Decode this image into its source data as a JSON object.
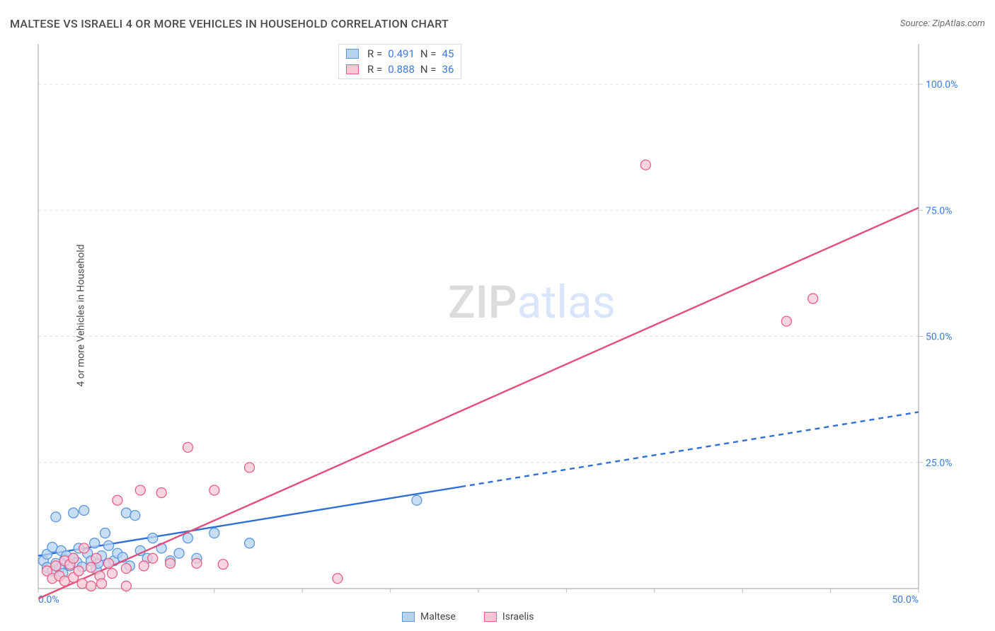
{
  "header": {
    "title": "MALTESE VS ISRAELI 4 OR MORE VEHICLES IN HOUSEHOLD CORRELATION CHART",
    "source": "Source: ZipAtlas.com"
  },
  "y_axis_label": "4 or more Vehicles in Household",
  "watermark": {
    "part1": "ZIP",
    "part2": "atlas"
  },
  "chart": {
    "type": "scatter-with-regression",
    "xlim": [
      0,
      50
    ],
    "ylim": [
      0,
      108
    ],
    "x_ticks": [
      0,
      5,
      10,
      15,
      20,
      25,
      30,
      35,
      40,
      45,
      50
    ],
    "x_tick_labels": [
      "0.0%",
      "",
      "",
      "",
      "",
      "",
      "",
      "",
      "",
      "",
      "50.0%"
    ],
    "y_ticks": [
      25,
      50,
      75,
      100
    ],
    "y_tick_labels": [
      "25.0%",
      "50.0%",
      "75.0%",
      "100.0%"
    ],
    "x_label_color": "#3a7be0",
    "y_label_color": "#3a7be0",
    "grid_color": "#dedede",
    "grid_dash": "4,4",
    "axis_color": "#bdbdbd",
    "tick_color": "#bdbdbd",
    "background_color": "#ffffff",
    "series": [
      {
        "name": "Maltese",
        "marker_fill": "#b6d3f2",
        "marker_stroke": "#5a96e0",
        "marker_r": 7,
        "line_color": "#2f6fd6",
        "line_width": 2.4,
        "solid_until_x": 24,
        "dash_pattern": "7,6",
        "slope": 0.57,
        "intercept": 6.5,
        "points": [
          [
            0.3,
            5.5
          ],
          [
            0.5,
            4.2
          ],
          [
            0.5,
            6.8
          ],
          [
            0.8,
            3.5
          ],
          [
            0.8,
            8.2
          ],
          [
            1.0,
            14.2
          ],
          [
            1.0,
            5.0
          ],
          [
            1.2,
            4.0
          ],
          [
            1.3,
            7.5
          ],
          [
            1.4,
            3.0
          ],
          [
            1.5,
            5.8
          ],
          [
            1.6,
            6.5
          ],
          [
            1.8,
            4.5
          ],
          [
            2.0,
            15.0
          ],
          [
            2.0,
            6.0
          ],
          [
            2.2,
            5.2
          ],
          [
            2.3,
            8.0
          ],
          [
            2.5,
            4.3
          ],
          [
            2.6,
            15.5
          ],
          [
            2.8,
            7.0
          ],
          [
            3.0,
            5.5
          ],
          [
            3.2,
            9.0
          ],
          [
            3.3,
            3.8
          ],
          [
            3.4,
            5.0
          ],
          [
            3.6,
            6.5
          ],
          [
            3.8,
            11.0
          ],
          [
            4.0,
            5.0
          ],
          [
            4.0,
            8.5
          ],
          [
            4.3,
            5.5
          ],
          [
            4.5,
            7.0
          ],
          [
            4.8,
            6.2
          ],
          [
            5.0,
            15.0
          ],
          [
            5.2,
            4.5
          ],
          [
            5.5,
            14.5
          ],
          [
            5.8,
            7.5
          ],
          [
            6.2,
            6.0
          ],
          [
            6.5,
            10.0
          ],
          [
            7.0,
            8.0
          ],
          [
            7.5,
            5.5
          ],
          [
            8.0,
            7.0
          ],
          [
            8.5,
            10.0
          ],
          [
            9.0,
            6.0
          ],
          [
            10.0,
            11.0
          ],
          [
            12.0,
            9.0
          ],
          [
            21.5,
            17.5
          ]
        ]
      },
      {
        "name": "Israelis",
        "marker_fill": "#f7c7d4",
        "marker_stroke": "#e65f86",
        "marker_r": 7,
        "line_color": "#e34f78",
        "line_width": 2.4,
        "solid_until_x": 50,
        "dash_pattern": "",
        "slope": 1.55,
        "intercept": -2.0,
        "points": [
          [
            0.5,
            3.5
          ],
          [
            0.8,
            2.0
          ],
          [
            1.0,
            4.5
          ],
          [
            1.2,
            2.5
          ],
          [
            1.5,
            5.5
          ],
          [
            1.5,
            1.5
          ],
          [
            1.8,
            4.8
          ],
          [
            2.0,
            2.2
          ],
          [
            2.0,
            6.0
          ],
          [
            2.3,
            3.5
          ],
          [
            2.5,
            1.0
          ],
          [
            2.6,
            8.0
          ],
          [
            3.0,
            4.2
          ],
          [
            3.0,
            0.5
          ],
          [
            3.3,
            6.0
          ],
          [
            3.5,
            2.5
          ],
          [
            3.6,
            1.0
          ],
          [
            4.0,
            5.0
          ],
          [
            4.2,
            3.0
          ],
          [
            4.5,
            17.5
          ],
          [
            5.0,
            4.0
          ],
          [
            5.0,
            0.5
          ],
          [
            5.8,
            19.5
          ],
          [
            6.0,
            4.5
          ],
          [
            6.5,
            6.0
          ],
          [
            7.0,
            19.0
          ],
          [
            7.5,
            5.0
          ],
          [
            8.5,
            28.0
          ],
          [
            9.0,
            5.0
          ],
          [
            10.0,
            19.5
          ],
          [
            10.5,
            4.8
          ],
          [
            12.0,
            24.0
          ],
          [
            17.0,
            2.0
          ],
          [
            34.5,
            84.0
          ],
          [
            42.5,
            53.0
          ],
          [
            44.0,
            57.5
          ]
        ]
      }
    ]
  },
  "legend_top": {
    "rows": [
      {
        "swatch_fill": "#b6d3f2",
        "swatch_stroke": "#5a96e0",
        "r_label": "R =",
        "r_value": "0.491",
        "n_label": "N =",
        "n_value": "45"
      },
      {
        "swatch_fill": "#f7c7d4",
        "swatch_stroke": "#e65f86",
        "r_label": "R =",
        "r_value": "0.888",
        "n_label": "N =",
        "n_value": "36"
      }
    ]
  },
  "legend_bottom": {
    "items": [
      {
        "swatch_fill": "#b6d3f2",
        "swatch_stroke": "#5a96e0",
        "label": "Maltese"
      },
      {
        "swatch_fill": "#f7c7d4",
        "swatch_stroke": "#e65f86",
        "label": "Israelis"
      }
    ]
  }
}
